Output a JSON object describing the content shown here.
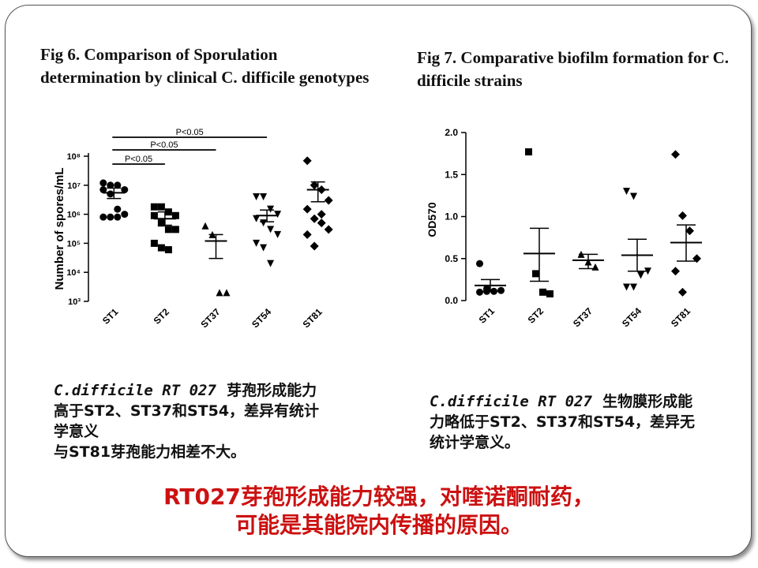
{
  "fig6": {
    "title": "Fig 6. Comparison of Sporulation determination by clinical C. difficile genotypes",
    "description_species": "C.difficile RT 027",
    "description_lines": [
      "芽孢形成能力",
      "高于ST2、ST37和ST54，差异有统计",
      "学意义",
      "与ST81芽孢能力相差不大。"
    ]
  },
  "fig7": {
    "title": "Fig 7. Comparative biofilm formation for C. difficile strains",
    "description_species": "C.difficile RT 027",
    "description_lines": [
      "生物膜形成能",
      "力略低于ST2、ST37和ST54，差异无",
      "统计学意义。"
    ]
  },
  "conclusion": {
    "line1": "RT027芽孢形成能力较强，对喹诺酮耐药，",
    "line2": "可能是其能院内传播的原因。"
  },
  "chart_data": [
    {
      "type": "scatter",
      "title": "",
      "ylabel": "Number of spores/mL",
      "y_scale": "log10",
      "ylim": [
        1000,
        100000000
      ],
      "y_tick_labels": [
        "10³",
        "10⁴",
        "10⁵",
        "10⁶",
        "10⁷",
        "10⁸"
      ],
      "categories": [
        "ST1",
        "ST2",
        "ST37",
        "ST54",
        "ST81"
      ],
      "markers": [
        "circle",
        "square",
        "triangle-up",
        "triangle-down",
        "diamond"
      ],
      "points": [
        [
          12000000,
          10000000,
          10000000,
          7000000,
          7000000,
          5000000,
          1500000,
          1000000,
          800000,
          800000,
          800000
        ],
        [
          1800000,
          1800000,
          1200000,
          900000,
          900000,
          500000,
          300000,
          300000,
          100000,
          70000,
          60000
        ],
        [
          400000,
          200000,
          2000,
          2000
        ],
        [
          4000000,
          4000000,
          1500000,
          1000000,
          700000,
          500000,
          300000,
          200000,
          100000,
          70000,
          20000
        ],
        [
          70000000,
          10000000,
          7000000,
          3000000,
          1500000,
          700000,
          500000,
          300000,
          200000,
          80000,
          1000000
        ]
      ],
      "means": [
        5500000,
        700000,
        120000,
        900000,
        7000000
      ],
      "sem_upper": [
        8000000,
        1200000,
        200000,
        1400000,
        13000000
      ],
      "sem_lower": [
        3500000,
        420000,
        30000,
        550000,
        2700000
      ],
      "significance": [
        {
          "groups": [
            "ST1",
            "ST2"
          ],
          "label": "P<0.05"
        },
        {
          "groups": [
            "ST1",
            "ST37"
          ],
          "label": "P<0.05"
        },
        {
          "groups": [
            "ST1",
            "ST54"
          ],
          "label": "P<0.05"
        }
      ]
    },
    {
      "type": "scatter",
      "title": "",
      "ylabel": "OD570",
      "ylim": [
        0,
        2.0
      ],
      "y_ticks": [
        0.0,
        0.5,
        1.0,
        1.5,
        2.0
      ],
      "categories": [
        "ST1",
        "ST2",
        "ST37",
        "ST54",
        "ST81"
      ],
      "markers": [
        "circle",
        "square",
        "triangle-up",
        "triangle-down",
        "diamond"
      ],
      "points": [
        [
          0.44,
          0.14,
          0.11,
          0.12,
          0.1,
          0.11
        ],
        [
          1.77,
          0.32,
          0.1,
          0.08
        ],
        [
          0.55,
          0.46,
          0.4
        ],
        [
          1.3,
          1.24,
          0.3,
          0.35,
          0.16,
          0.16
        ],
        [
          1.74,
          1.01,
          0.83,
          0.5,
          0.35,
          0.1
        ]
      ],
      "means": [
        0.18,
        0.56,
        0.48,
        0.54,
        0.69
      ],
      "sem_upper": [
        0.25,
        0.86,
        0.55,
        0.73,
        0.9
      ],
      "sem_lower": [
        0.11,
        0.23,
        0.38,
        0.35,
        0.47
      ]
    }
  ]
}
